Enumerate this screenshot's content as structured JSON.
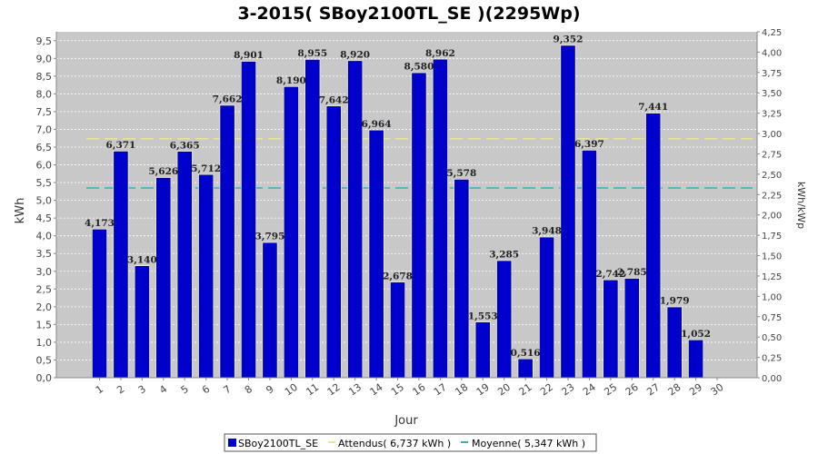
{
  "chart_data": {
    "type": "bar",
    "title": "3-2015( SBoy2100TL_SE )(2295Wp)",
    "xlabel": "Jour",
    "ylabel": "kWh",
    "ylabel_right": "kWh/kWp",
    "categories": [
      "1",
      "2",
      "3",
      "4",
      "5",
      "6",
      "7",
      "8",
      "9",
      "10",
      "11",
      "12",
      "13",
      "14",
      "15",
      "16",
      "17",
      "18",
      "19",
      "20",
      "21",
      "22",
      "23",
      "24",
      "25",
      "26",
      "27",
      "28",
      "29",
      "30"
    ],
    "series": [
      {
        "name": "SBoy2100TL_SE",
        "color": "#0000cc",
        "values": [
          4.173,
          6.371,
          3.14,
          5.626,
          6.365,
          5.712,
          7.662,
          8.901,
          3.795,
          8.19,
          8.955,
          7.642,
          8.92,
          6.964,
          2.678,
          8.58,
          8.962,
          5.578,
          1.553,
          3.285,
          0.516,
          3.948,
          9.352,
          6.397,
          2.742,
          2.785,
          7.441,
          1.979,
          1.052,
          null
        ],
        "labels": [
          "4,173",
          "6,371",
          "3,140",
          "5,626",
          "6,365",
          "5,712",
          "7,662",
          "8,901",
          "3,795",
          "8,190",
          "8,955",
          "7,642",
          "8,920",
          "6,964",
          "2,678",
          "8,580",
          "8,962",
          "5,578",
          "1,553",
          "3,285",
          "0,516",
          "3,948",
          "9,352",
          "6,397",
          "2,742",
          "2,785",
          "7,441",
          "1,979",
          "1,052",
          ""
        ]
      }
    ],
    "reference_lines": [
      {
        "name": "Attendus",
        "value": 6.737,
        "color": "#e8e88a",
        "style": "dashed"
      },
      {
        "name": "Moyenne",
        "value": 5.347,
        "color": "#22bbbb",
        "style": "dashed"
      }
    ],
    "ylim": [
      0,
      9.75
    ],
    "yticks": [
      "0,0",
      "0,5",
      "1,0",
      "1,5",
      "2,0",
      "2,5",
      "3,0",
      "3,5",
      "4,0",
      "4,5",
      "5,0",
      "5,5",
      "6,0",
      "6,5",
      "7,0",
      "7,5",
      "8,0",
      "8,5",
      "9,0",
      "9,5"
    ],
    "ylim_right": [
      0,
      4.25
    ],
    "yticks_right": [
      "0,00",
      "0,25",
      "0,50",
      "0,75",
      "1,00",
      "1,25",
      "1,50",
      "1,75",
      "2,00",
      "2,25",
      "2,50",
      "2,75",
      "3,00",
      "3,25",
      "3,50",
      "3,75",
      "4,00",
      "4,25"
    ],
    "legend": [
      {
        "label": "SBoy2100TL_SE",
        "kind": "box",
        "color": "#0000cc"
      },
      {
        "label": "Attendus( 6,737 kWh )",
        "kind": "line",
        "color": "#e8e88a"
      },
      {
        "label": "Moyenne( 5,347 kWh )",
        "kind": "line",
        "color": "#22bbbb"
      }
    ],
    "legend_position": "bottom",
    "grid": true
  }
}
